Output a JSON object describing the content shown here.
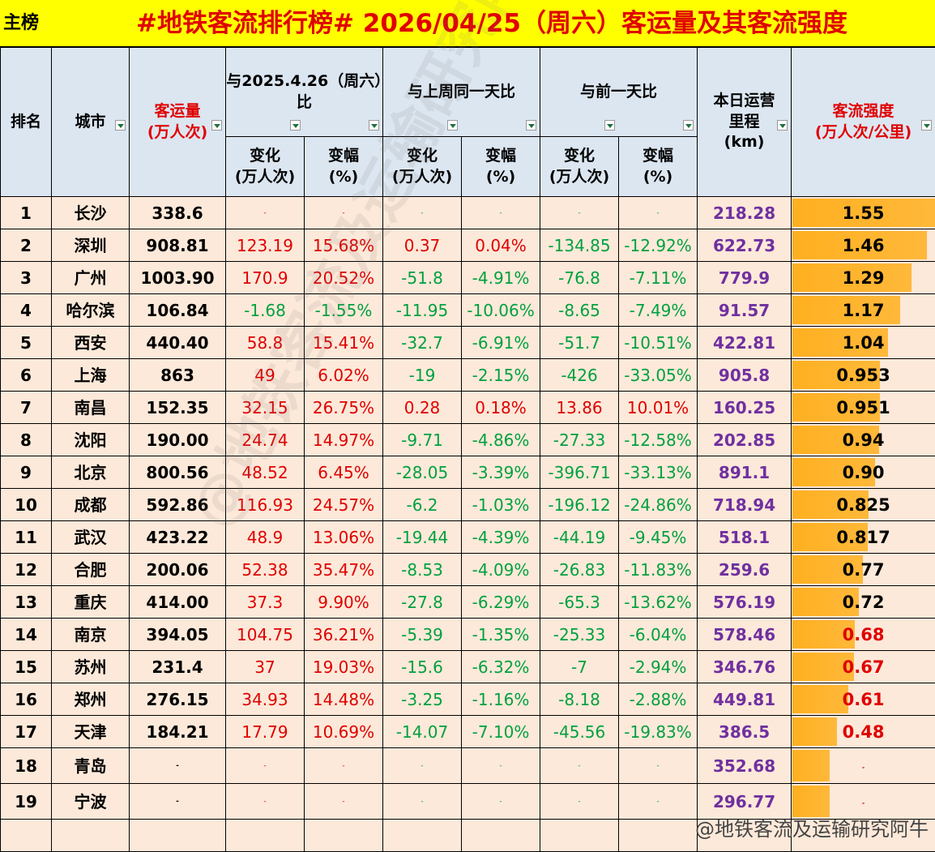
{
  "header": {
    "badge": "主榜",
    "title": "#地铁客流排行榜# 2026/04/25（周六）客运量及其客流强度"
  },
  "table": {
    "columns": {
      "rank": "排名",
      "city": "城市",
      "volume": "客运量\n(万人次)",
      "mileage": "本日运营\n里程\n(km)",
      "intensity": "客流强度\n(万人次/公里)"
    },
    "groups": [
      "与2025.4.26（周六）比",
      "与上周同一天比",
      "与前一天比"
    ],
    "subcolumns": [
      "变化\n(万人次)",
      "变幅\n(%)",
      "变化\n(万人次)",
      "变幅\n(%)",
      "变化\n(万人次)",
      "变幅\n(%)"
    ],
    "rows": [
      [
        "1",
        "长沙",
        "338.6",
        "-",
        "-",
        "-",
        "-",
        "-",
        "-",
        "218.28",
        "1.55"
      ],
      [
        "2",
        "深圳",
        "908.81",
        "123.19",
        "15.68%",
        "0.37",
        "0.04%",
        "-134.85",
        "-12.92%",
        "622.73",
        "1.46"
      ],
      [
        "3",
        "广州",
        "1003.90",
        "170.9",
        "20.52%",
        "-51.8",
        "-4.91%",
        "-76.8",
        "-7.11%",
        "779.9",
        "1.29"
      ],
      [
        "4",
        "哈尔滨",
        "106.84",
        "-1.68",
        "-1.55%",
        "-11.95",
        "-10.06%",
        "-8.65",
        "-7.49%",
        "91.57",
        "1.17"
      ],
      [
        "5",
        "西安",
        "440.40",
        "58.8",
        "15.41%",
        "-32.7",
        "-6.91%",
        "-51.7",
        "-10.51%",
        "422.81",
        "1.04"
      ],
      [
        "6",
        "上海",
        "863",
        "49",
        "6.02%",
        "-19",
        "-2.15%",
        "-426",
        "-33.05%",
        "905.8",
        "0.953"
      ],
      [
        "7",
        "南昌",
        "152.35",
        "32.15",
        "26.75%",
        "0.28",
        "0.18%",
        "13.86",
        "10.01%",
        "160.25",
        "0.951"
      ],
      [
        "8",
        "沈阳",
        "190.00",
        "24.74",
        "14.97%",
        "-9.71",
        "-4.86%",
        "-27.33",
        "-12.58%",
        "202.85",
        "0.94"
      ],
      [
        "9",
        "北京",
        "800.56",
        "48.52",
        "6.45%",
        "-28.05",
        "-3.39%",
        "-396.71",
        "-33.13%",
        "891.1",
        "0.90"
      ],
      [
        "10",
        "成都",
        "592.86",
        "116.93",
        "24.57%",
        "-6.2",
        "-1.03%",
        "-196.12",
        "-24.86%",
        "718.94",
        "0.825"
      ],
      [
        "11",
        "武汉",
        "423.22",
        "48.9",
        "13.06%",
        "-19.44",
        "-4.39%",
        "-44.19",
        "-9.45%",
        "518.1",
        "0.817"
      ],
      [
        "12",
        "合肥",
        "200.06",
        "52.38",
        "35.47%",
        "-8.53",
        "-4.09%",
        "-26.83",
        "-11.83%",
        "259.6",
        "0.77"
      ],
      [
        "13",
        "重庆",
        "414.00",
        "37.3",
        "9.90%",
        "-27.8",
        "-6.29%",
        "-65.3",
        "-13.62%",
        "576.19",
        "0.72"
      ],
      [
        "14",
        "南京",
        "394.05",
        "104.75",
        "36.21%",
        "-5.39",
        "-1.35%",
        "-25.33",
        "-6.04%",
        "578.46",
        "0.68"
      ],
      [
        "15",
        "苏州",
        "231.4",
        "37",
        "19.03%",
        "-15.6",
        "-6.32%",
        "-7",
        "-2.94%",
        "346.76",
        "0.67"
      ],
      [
        "16",
        "郑州",
        "276.15",
        "34.93",
        "14.48%",
        "-3.25",
        "-1.16%",
        "-8.18",
        "-2.88%",
        "449.81",
        "0.61"
      ],
      [
        "17",
        "天津",
        "184.21",
        "17.79",
        "10.69%",
        "-14.07",
        "-7.10%",
        "-45.56",
        "-19.83%",
        "386.5",
        "0.48"
      ],
      [
        "18",
        "青岛",
        "-",
        "-",
        "-",
        "-",
        "-",
        "-",
        "-",
        "352.68",
        "-"
      ],
      [
        "19",
        "宁波",
        "-",
        "-",
        "-",
        "-",
        "-",
        "-",
        "-",
        "296.77",
        "-"
      ]
    ]
  },
  "watermark": "@地铁客流及运输研究阿牛"
}
